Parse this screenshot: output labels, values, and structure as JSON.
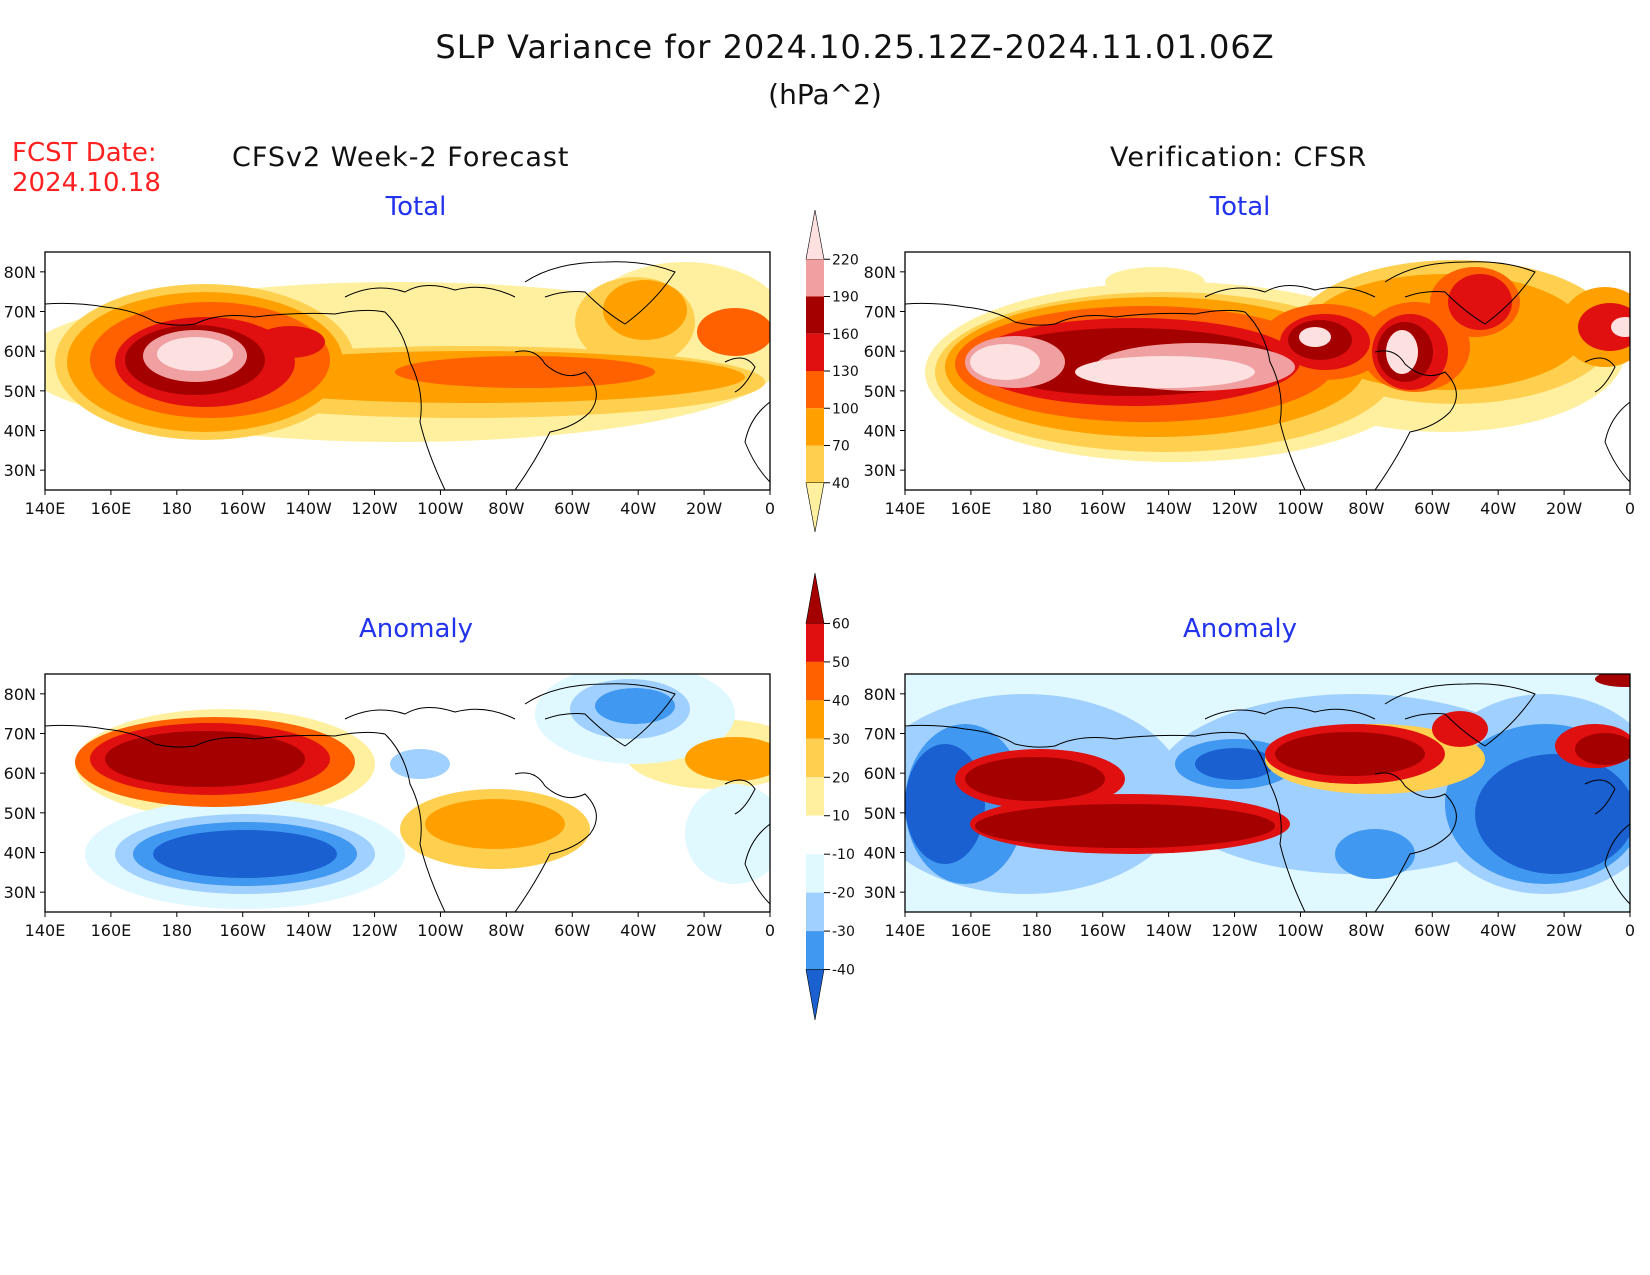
{
  "title": "SLP Variance for 2024.10.25.12Z-2024.11.01.06Z",
  "units": "(hPa^2)",
  "forecast_date_label": "FCST Date:",
  "forecast_date": "2024.10.18",
  "left_heading": "CFSv2 Week-2 Forecast",
  "right_heading": "Verification: CFSR",
  "panels": [
    {
      "id": "forecast-total",
      "label": "Total"
    },
    {
      "id": "verification-total",
      "label": "Total"
    },
    {
      "id": "forecast-anomaly",
      "label": "Anomaly"
    },
    {
      "id": "verification-anomaly",
      "label": "Anomaly"
    }
  ],
  "map": {
    "lon_range": [
      "140E",
      "0"
    ],
    "lat_range": [
      "25N",
      "85N"
    ],
    "lon_ticks": [
      "140E",
      "160E",
      "180",
      "160W",
      "140W",
      "120W",
      "100W",
      "80W",
      "60W",
      "40W",
      "20W",
      "0"
    ],
    "lat_ticks": [
      "80N",
      "70N",
      "60N",
      "50N",
      "40N",
      "30N"
    ]
  },
  "colorbars": {
    "total": {
      "levels": [
        "220",
        "190",
        "160",
        "130",
        "100",
        "70",
        "40"
      ],
      "colors": [
        "#fde0e0",
        "#f0a0a0",
        "#a50000",
        "#e01010",
        "#ff6000",
        "#ffa000",
        "#ffd050",
        "#fff0a0"
      ]
    },
    "anomaly": {
      "levels": [
        "60",
        "50",
        "40",
        "30",
        "20",
        "10",
        "-10",
        "-20",
        "-30",
        "-40"
      ],
      "colors": [
        "#a50000",
        "#e01010",
        "#ff6000",
        "#ffa000",
        "#ffd050",
        "#fff0a0",
        "#ffffff",
        "#e0f8ff",
        "#a0d0ff",
        "#4098f0",
        "#1a60d0"
      ]
    }
  }
}
